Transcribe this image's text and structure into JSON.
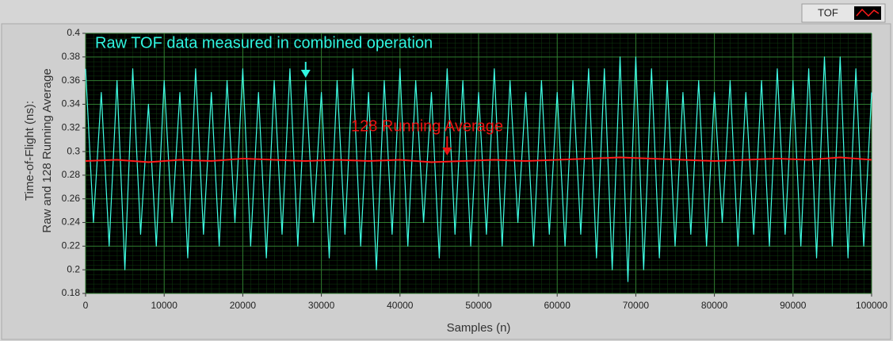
{
  "chart_data": {
    "type": "line",
    "xlabel": "Samples (n)",
    "ylabel": [
      "Time-of-Flight (ns):",
      "Raw and 128 Running Average"
    ],
    "annotations": [
      {
        "text": "Raw TOF data measured in combined operation",
        "color": "#30f5e0"
      },
      {
        "text": "128 Running Average",
        "color": "#ee1111"
      }
    ],
    "xlim": [
      0,
      100000
    ],
    "ylim": [
      0.18,
      0.4
    ],
    "xticks": [
      0,
      10000,
      20000,
      30000,
      40000,
      50000,
      60000,
      70000,
      80000,
      90000,
      100000
    ],
    "yticks": [
      0.18,
      0.2,
      0.22,
      0.24,
      0.26,
      0.28,
      0.3,
      0.32,
      0.34,
      0.36,
      0.38,
      0.4
    ],
    "grid": true,
    "series": [
      {
        "color": "#40ffe6",
        "x": [
          0,
          1000,
          2000,
          3000,
          4000,
          5000,
          6000,
          7000,
          8000,
          9000,
          10000,
          11000,
          12000,
          13000,
          14000,
          15000,
          16000,
          17000,
          18000,
          19000,
          20000,
          21000,
          22000,
          23000,
          24000,
          25000,
          26000,
          27000,
          28000,
          29000,
          30000,
          31000,
          32000,
          33000,
          34000,
          35000,
          36000,
          37000,
          38000,
          39000,
          40000,
          41000,
          42000,
          43000,
          44000,
          45000,
          46000,
          47000,
          48000,
          49000,
          50000,
          51000,
          52000,
          53000,
          54000,
          55000,
          56000,
          57000,
          58000,
          59000,
          60000,
          61000,
          62000,
          63000,
          64000,
          65000,
          66000,
          67000,
          68000,
          69000,
          70000,
          71000,
          72000,
          73000,
          74000,
          75000,
          76000,
          77000,
          78000,
          79000,
          80000,
          81000,
          82000,
          83000,
          84000,
          85000,
          86000,
          87000,
          88000,
          89000,
          90000,
          91000,
          92000,
          93000,
          94000,
          95000,
          96000,
          97000,
          98000,
          99000,
          100000
        ],
        "values": [
          0.37,
          0.24,
          0.35,
          0.22,
          0.36,
          0.2,
          0.37,
          0.23,
          0.34,
          0.22,
          0.36,
          0.24,
          0.35,
          0.21,
          0.37,
          0.23,
          0.35,
          0.22,
          0.36,
          0.24,
          0.37,
          0.22,
          0.35,
          0.21,
          0.36,
          0.23,
          0.37,
          0.22,
          0.36,
          0.24,
          0.35,
          0.21,
          0.36,
          0.23,
          0.37,
          0.22,
          0.35,
          0.2,
          0.36,
          0.23,
          0.37,
          0.22,
          0.36,
          0.24,
          0.35,
          0.21,
          0.37,
          0.23,
          0.36,
          0.22,
          0.35,
          0.23,
          0.37,
          0.22,
          0.36,
          0.24,
          0.35,
          0.22,
          0.36,
          0.23,
          0.35,
          0.22,
          0.36,
          0.23,
          0.37,
          0.21,
          0.37,
          0.2,
          0.38,
          0.19,
          0.38,
          0.2,
          0.37,
          0.21,
          0.36,
          0.22,
          0.35,
          0.23,
          0.36,
          0.22,
          0.35,
          0.24,
          0.36,
          0.22,
          0.35,
          0.23,
          0.36,
          0.22,
          0.37,
          0.23,
          0.36,
          0.22,
          0.37,
          0.21,
          0.38,
          0.22,
          0.38,
          0.21,
          0.37,
          0.22,
          0.35
        ]
      },
      {
        "name": "TOF",
        "color": "#ff1a1a",
        "x": [
          0,
          4000,
          8000,
          12000,
          16000,
          20000,
          24000,
          28000,
          32000,
          36000,
          40000,
          44000,
          48000,
          52000,
          56000,
          60000,
          64000,
          68000,
          72000,
          76000,
          80000,
          84000,
          88000,
          92000,
          96000,
          100000
        ],
        "values": [
          0.292,
          0.293,
          0.291,
          0.293,
          0.292,
          0.294,
          0.293,
          0.292,
          0.293,
          0.292,
          0.293,
          0.291,
          0.292,
          0.293,
          0.292,
          0.293,
          0.294,
          0.295,
          0.294,
          0.293,
          0.292,
          0.293,
          0.294,
          0.293,
          0.295,
          0.293
        ]
      }
    ]
  }
}
